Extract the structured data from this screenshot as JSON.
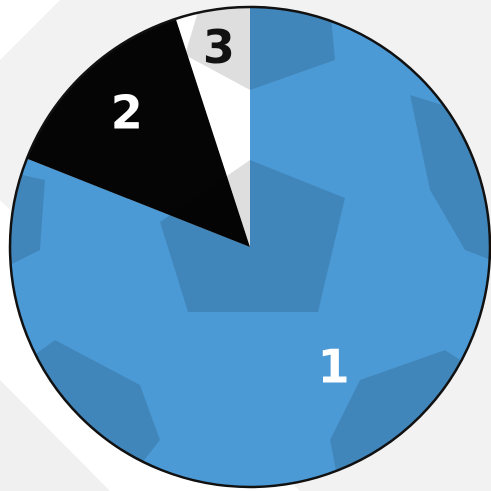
{
  "chart_data": {
    "type": "pie",
    "categories": [
      "1",
      "2",
      "3"
    ],
    "values": [
      81,
      14,
      5
    ],
    "colors": [
      "#4b9ad6",
      "#050505",
      "#ffffff"
    ],
    "start_angle": 0,
    "direction": "clockwise"
  }
}
